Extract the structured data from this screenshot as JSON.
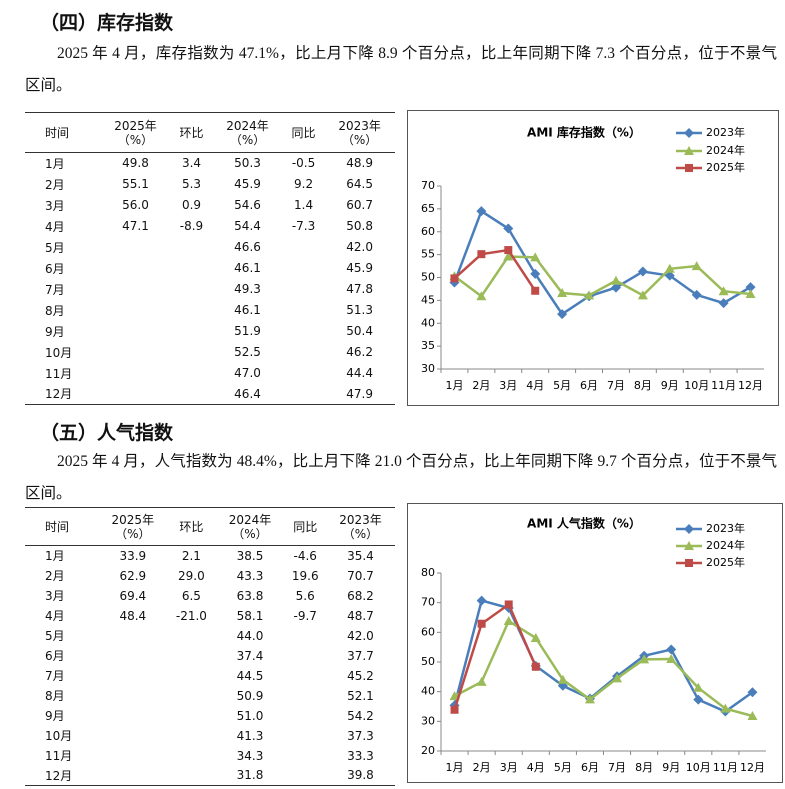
{
  "sections": [
    {
      "heading": "（四）库存指数",
      "paragraph": "2025 年 4 月，库存指数为 47.1%，比上月下降 8.9 个百分点，比上年同期下降 7.3 个百分点，位于不景气区间。",
      "table": {
        "header": [
          [
            "时间"
          ],
          [
            "2025年",
            "（%）"
          ],
          [
            "环比"
          ],
          [
            "2024年",
            "（%）"
          ],
          [
            "同比"
          ],
          [
            "2023年",
            "（%）"
          ]
        ],
        "rows": [
          [
            "1月",
            "49.8",
            "3.4",
            "50.3",
            "-0.5",
            "48.9"
          ],
          [
            "2月",
            "55.1",
            "5.3",
            "45.9",
            "9.2",
            "64.5"
          ],
          [
            "3月",
            "56.0",
            "0.9",
            "54.6",
            "1.4",
            "60.7"
          ],
          [
            "4月",
            "47.1",
            "-8.9",
            "54.4",
            "-7.3",
            "50.8"
          ],
          [
            "5月",
            null,
            null,
            "46.6",
            null,
            "42.0"
          ],
          [
            "6月",
            null,
            null,
            "46.1",
            null,
            "45.9"
          ],
          [
            "7月",
            null,
            null,
            "49.3",
            null,
            "47.8"
          ],
          [
            "8月",
            null,
            null,
            "46.1",
            null,
            "51.3"
          ],
          [
            "9月",
            null,
            null,
            "51.9",
            null,
            "50.4"
          ],
          [
            "10月",
            null,
            null,
            "52.5",
            null,
            "46.2"
          ],
          [
            "11月",
            null,
            null,
            "47.0",
            null,
            "44.4"
          ],
          [
            "12月",
            null,
            null,
            "46.4",
            null,
            "47.9"
          ]
        ]
      },
      "chart": {
        "type": "line",
        "title": "AMI 库存指数（%）",
        "categories": [
          "1月",
          "2月",
          "3月",
          "4月",
          "5月",
          "6月",
          "7月",
          "8月",
          "9月",
          "10月",
          "11月",
          "12月"
        ],
        "series": [
          {
            "name": "2023年",
            "color": "#4a7ebb",
            "marker": "diamond",
            "values": [
              48.9,
              64.5,
              60.7,
              50.8,
              42.0,
              45.9,
              47.8,
              51.3,
              50.4,
              46.2,
              44.4,
              47.9
            ]
          },
          {
            "name": "2024年",
            "color": "#9bbb59",
            "marker": "triangle",
            "values": [
              50.3,
              45.9,
              54.6,
              54.4,
              46.6,
              46.1,
              49.3,
              46.1,
              51.9,
              52.5,
              47.0,
              46.4
            ]
          },
          {
            "name": "2025年",
            "color": "#be4b48",
            "marker": "square",
            "values": [
              49.8,
              55.1,
              56.0,
              47.1
            ]
          }
        ],
        "ylim": [
          30,
          70
        ],
        "yticks": [
          30,
          35,
          40,
          45,
          50,
          55,
          60,
          65,
          70
        ],
        "legend": "upper right"
      }
    },
    {
      "heading": "（五）人气指数",
      "paragraph": "2025 年 4 月，人气指数为 48.4%，比上月下降 21.0 个百分点，比上年同期下降 9.7 个百分点，位于不景气区间。",
      "table": {
        "header": [
          [
            "时间"
          ],
          [
            "2025年",
            "（%）"
          ],
          [
            "环比"
          ],
          [
            "2024年",
            "（%）"
          ],
          [
            "同比"
          ],
          [
            "2023年",
            "（%）"
          ]
        ],
        "rows": [
          [
            "1月",
            "33.9",
            "2.1",
            "38.5",
            "-4.6",
            "35.4"
          ],
          [
            "2月",
            "62.9",
            "29.0",
            "43.3",
            "19.6",
            "70.7"
          ],
          [
            "3月",
            "69.4",
            "6.5",
            "63.8",
            "5.6",
            "68.2"
          ],
          [
            "4月",
            "48.4",
            "-21.0",
            "58.1",
            "-9.7",
            "48.7"
          ],
          [
            "5月",
            null,
            null,
            "44.0",
            null,
            "42.0"
          ],
          [
            "6月",
            null,
            null,
            "37.4",
            null,
            "37.7"
          ],
          [
            "7月",
            null,
            null,
            "44.5",
            null,
            "45.2"
          ],
          [
            "8月",
            null,
            null,
            "50.9",
            null,
            "52.1"
          ],
          [
            "9月",
            null,
            null,
            "51.0",
            null,
            "54.2"
          ],
          [
            "10月",
            null,
            null,
            "41.3",
            null,
            "37.3"
          ],
          [
            "11月",
            null,
            null,
            "34.3",
            null,
            "33.3"
          ],
          [
            "12月",
            null,
            null,
            "31.8",
            null,
            "39.8"
          ]
        ]
      },
      "chart": {
        "type": "line",
        "title": "AMI 人气指数（%）",
        "categories": [
          "1月",
          "2月",
          "3月",
          "4月",
          "5月",
          "6月",
          "7月",
          "8月",
          "9月",
          "10月",
          "11月",
          "12月"
        ],
        "series": [
          {
            "name": "2023年",
            "color": "#4a7ebb",
            "marker": "diamond",
            "values": [
              35.4,
              70.7,
              68.2,
              48.7,
              42.0,
              37.7,
              45.2,
              52.1,
              54.2,
              37.3,
              33.3,
              39.8
            ]
          },
          {
            "name": "2024年",
            "color": "#9bbb59",
            "marker": "triangle",
            "values": [
              38.5,
              43.3,
              63.8,
              58.1,
              44.0,
              37.4,
              44.5,
              50.9,
              51.0,
              41.3,
              34.3,
              31.8
            ]
          },
          {
            "name": "2025年",
            "color": "#be4b48",
            "marker": "square",
            "values": [
              33.9,
              62.9,
              69.4,
              48.4
            ]
          }
        ],
        "ylim": [
          20,
          80
        ],
        "yticks": [
          20,
          30,
          40,
          50,
          60,
          70,
          80
        ],
        "legend": "upper right"
      }
    }
  ]
}
